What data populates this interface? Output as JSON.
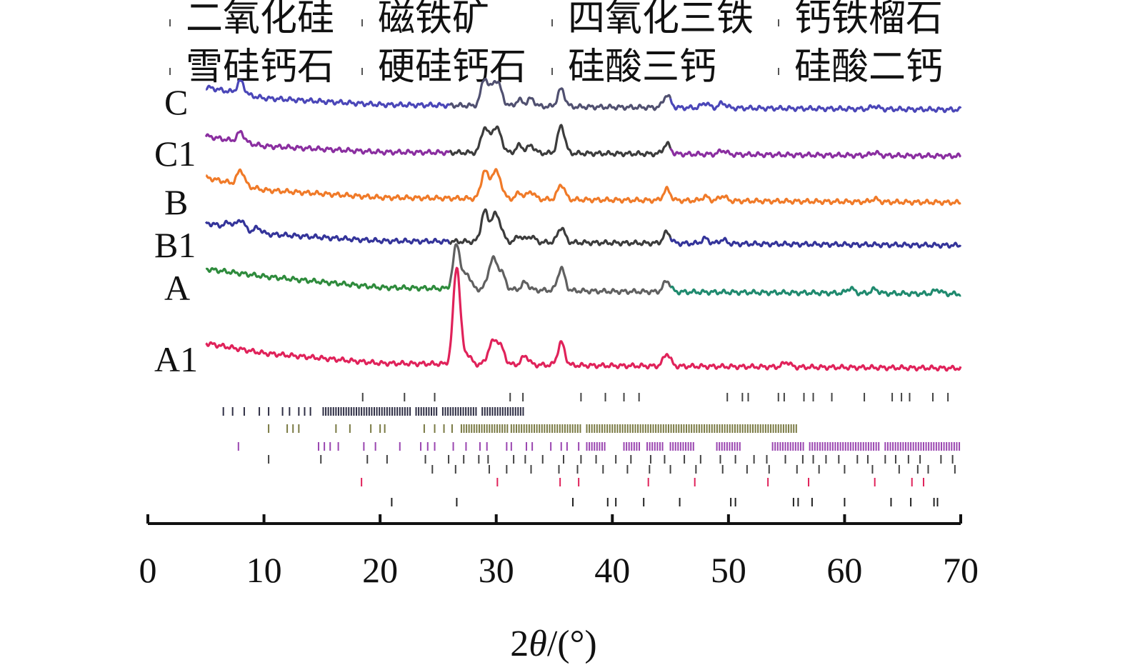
{
  "chart_data": {
    "type": "line",
    "title": "",
    "xlabel": "2θ/(°)",
    "xlabel_parts": {
      "pre": "2",
      "theta": "θ",
      "post": "/(°)"
    },
    "ylabel": "",
    "xlim": [
      0,
      70
    ],
    "x_ticks": [
      0,
      10,
      20,
      30,
      40,
      50,
      60,
      70
    ],
    "x_tick_labels": [
      "0",
      "10",
      "20",
      "30",
      "40",
      "50",
      "60",
      "70"
    ],
    "x_range": [
      5,
      70
    ],
    "legend": [
      {
        "name": "二氧化硅",
        "color": "#555555"
      },
      {
        "name": "磁铁矿",
        "color": "#555555"
      },
      {
        "name": "四氧化三铁",
        "color": "#555555"
      },
      {
        "name": "钙铁榴石",
        "color": "#555555"
      },
      {
        "name": "雪硅钙石",
        "color": "#555555"
      },
      {
        "name": "硬硅钙石",
        "color": "#555555"
      },
      {
        "name": "硅酸三钙",
        "color": "#555555"
      },
      {
        "name": "硅酸二钙",
        "color": "#555555"
      }
    ],
    "series": [
      {
        "name": "C",
        "colors": [
          "#4a46b8",
          "#505070",
          "#4a46b8"
        ],
        "baseline": [
          [
            5,
            0.4
          ],
          [
            10,
            0.18
          ],
          [
            20,
            0.05
          ],
          [
            40,
            0.0
          ],
          [
            70,
            -0.05
          ]
        ],
        "peaks": [
          [
            8,
            0.25
          ],
          [
            29,
            0.55
          ],
          [
            29.8,
            0.4
          ],
          [
            30.3,
            0.3
          ],
          [
            32,
            0.12
          ],
          [
            33,
            0.15
          ],
          [
            35.6,
            0.35
          ],
          [
            44.7,
            0.25
          ],
          [
            48,
            0.1
          ],
          [
            49.5,
            0.1
          ],
          [
            62.6,
            0.06
          ]
        ]
      },
      {
        "name": "C1",
        "colors": [
          "#8a2ea0",
          "#3c3c3c",
          "#8a2ea0"
        ],
        "baseline": [
          [
            5,
            0.35
          ],
          [
            10,
            0.15
          ],
          [
            20,
            0.03
          ],
          [
            40,
            0.0
          ],
          [
            70,
            -0.05
          ]
        ],
        "peaks": [
          [
            8,
            0.2
          ],
          [
            29,
            0.5
          ],
          [
            29.8,
            0.4
          ],
          [
            30.3,
            0.3
          ],
          [
            32,
            0.15
          ],
          [
            33,
            0.15
          ],
          [
            35.6,
            0.55
          ],
          [
            44.7,
            0.2
          ],
          [
            49.5,
            0.08
          ],
          [
            62.6,
            0.06
          ]
        ]
      },
      {
        "name": "B",
        "colors": [
          "#f07a28",
          "#f07a28",
          "#f07a28"
        ],
        "baseline": [
          [
            5,
            0.45
          ],
          [
            10,
            0.2
          ],
          [
            20,
            0.05
          ],
          [
            40,
            0.0
          ],
          [
            70,
            -0.05
          ]
        ],
        "peaks": [
          [
            8,
            0.3
          ],
          [
            29,
            0.55
          ],
          [
            29.8,
            0.45
          ],
          [
            30.3,
            0.3
          ],
          [
            32,
            0.12
          ],
          [
            33,
            0.15
          ],
          [
            35.6,
            0.3
          ],
          [
            44.7,
            0.22
          ],
          [
            48,
            0.08
          ],
          [
            49.5,
            0.1
          ],
          [
            62.6,
            0.06
          ]
        ]
      },
      {
        "name": "B1",
        "colors": [
          "#34349a",
          "#3c3c3c",
          "#34349a"
        ],
        "baseline": [
          [
            5,
            0.4
          ],
          [
            10,
            0.18
          ],
          [
            20,
            0.04
          ],
          [
            40,
            0.0
          ],
          [
            70,
            -0.05
          ]
        ],
        "peaks": [
          [
            7,
            0.1
          ],
          [
            8,
            0.2
          ],
          [
            9.5,
            0.1
          ],
          [
            29,
            0.6
          ],
          [
            29.8,
            0.45
          ],
          [
            30.3,
            0.3
          ],
          [
            32,
            0.12
          ],
          [
            33,
            0.12
          ],
          [
            35.6,
            0.3
          ],
          [
            44.7,
            0.22
          ],
          [
            48,
            0.1
          ],
          [
            49.5,
            0.08
          ]
        ]
      },
      {
        "name": "A",
        "colors": [
          "#2e8b3c",
          "#606060",
          "#1f8a6e"
        ],
        "baseline": [
          [
            5,
            0.45
          ],
          [
            10,
            0.3
          ],
          [
            20,
            0.08
          ],
          [
            40,
            0.0
          ],
          [
            70,
            -0.05
          ]
        ],
        "peaks": [
          [
            26.6,
            0.9
          ],
          [
            27.5,
            0.3
          ],
          [
            29.5,
            0.35
          ],
          [
            29.9,
            0.4
          ],
          [
            30.5,
            0.3
          ],
          [
            32.5,
            0.15
          ],
          [
            35.6,
            0.45
          ],
          [
            44.7,
            0.22
          ],
          [
            60.5,
            0.1
          ],
          [
            62.6,
            0.08
          ],
          [
            68,
            0.08
          ]
        ]
      },
      {
        "name": "A1",
        "colors": [
          "#e0225a",
          "#e0225a",
          "#e0225a"
        ],
        "baseline": [
          [
            5,
            0.45
          ],
          [
            10,
            0.25
          ],
          [
            20,
            0.05
          ],
          [
            40,
            0.0
          ],
          [
            70,
            -0.05
          ]
        ],
        "peaks": [
          [
            26.6,
            1.95
          ],
          [
            27.5,
            0.2
          ],
          [
            29.5,
            0.3
          ],
          [
            30,
            0.35
          ],
          [
            30.5,
            0.25
          ],
          [
            32.5,
            0.18
          ],
          [
            35.6,
            0.45
          ],
          [
            44.7,
            0.25
          ],
          [
            55,
            0.1
          ]
        ]
      }
    ],
    "reference_patterns": [
      {
        "name": "二氧化硅",
        "color": "#444444",
        "positions": [
          18.5,
          22.1,
          24.7,
          31.2,
          32.3,
          37.3,
          39.4,
          41.0,
          42.3,
          49.9,
          51.2,
          51.7,
          54.3,
          54.8,
          56.5,
          57.3,
          58.9,
          61.7,
          64.1,
          64.9,
          65.6,
          67.6,
          68.9
        ]
      },
      {
        "name": "磁铁矿",
        "color": "#2e2e44",
        "dense_ranges": [
          [
            15.1,
            22.7
          ],
          [
            23.1,
            25.0
          ],
          [
            25.4,
            28.3
          ],
          [
            28.8,
            32.5
          ]
        ],
        "positions": [
          6.5,
          7.3,
          8.3,
          9.6,
          10.4,
          11.6,
          12.2,
          13.0,
          13.5,
          14.0
        ]
      },
      {
        "name": "四氧化三铁",
        "color": "#7a7a44",
        "dense_ranges": [
          [
            27.0,
            31.0
          ],
          [
            31.3,
            37.3
          ],
          [
            37.8,
            56.0
          ]
        ],
        "positions": [
          10.4,
          12.0,
          12.5,
          13.0,
          16.2,
          17.4,
          19.2,
          20.0,
          20.4,
          23.8,
          24.7,
          25.5,
          26.2
        ]
      },
      {
        "name": "钙铁榴石",
        "color": "#9a46b0",
        "dense_ranges": [
          [
            37.8,
            39.5
          ],
          [
            41.0,
            42.5
          ],
          [
            43.0,
            44.5
          ],
          [
            45.0,
            47.0
          ],
          [
            49.0,
            51.0
          ],
          [
            53.8,
            56.5
          ],
          [
            57.0,
            63.0
          ],
          [
            63.5,
            70.0
          ]
        ],
        "positions": [
          7.8,
          14.7,
          15.2,
          15.7,
          16.4,
          18.6,
          19.6,
          21.7,
          23.5,
          24.1,
          24.7,
          26.3,
          27.4,
          28.6,
          29.2,
          30.9,
          31.3,
          32.6,
          33.1,
          34.7,
          35.6,
          36.1,
          37.1
        ]
      },
      {
        "name": "雪硅钙石",
        "color": "#444444",
        "positions": [
          10.4,
          14.9,
          18.9,
          20.6,
          23.9,
          25.9,
          27.2,
          28.5,
          29.3,
          31.5,
          32.5,
          34.0,
          35.8,
          37.3,
          38.6,
          40.3,
          41.6,
          43.3,
          44.5,
          46.2,
          47.6,
          49.3,
          50.6,
          52.2,
          53.3,
          54.9,
          56.4,
          57.3,
          58.4,
          59.5,
          61.1,
          62.0,
          63.5,
          64.4,
          65.5,
          66.5,
          68.3,
          69.3
        ]
      },
      {
        "name": "硬硅钙石",
        "color": "#444444",
        "positions": [
          24.5,
          26.5,
          29.4,
          30.9,
          33.0,
          35.4,
          37.0,
          39.2,
          41.3,
          43.2,
          45.0,
          47.2,
          49.5,
          51.6,
          53.5,
          55.9,
          57.8,
          60.0,
          62.4,
          64.7,
          66.3,
          67.2,
          69.5
        ]
      },
      {
        "name": "硅酸三钙",
        "color": "#e0225a",
        "positions": [
          18.4,
          30.1,
          35.5,
          37.1,
          43.1,
          47.1,
          53.4,
          56.9,
          62.6,
          65.8,
          66.8
        ]
      },
      {
        "name": "硅酸二钙",
        "color": "#222222",
        "positions": [
          21.0,
          26.6,
          36.6,
          39.6,
          40.3,
          42.7,
          45.8,
          50.2,
          50.6,
          55.6,
          56.0,
          57.2,
          60.0,
          64.0,
          65.7,
          67.7,
          68.0
        ]
      }
    ]
  }
}
